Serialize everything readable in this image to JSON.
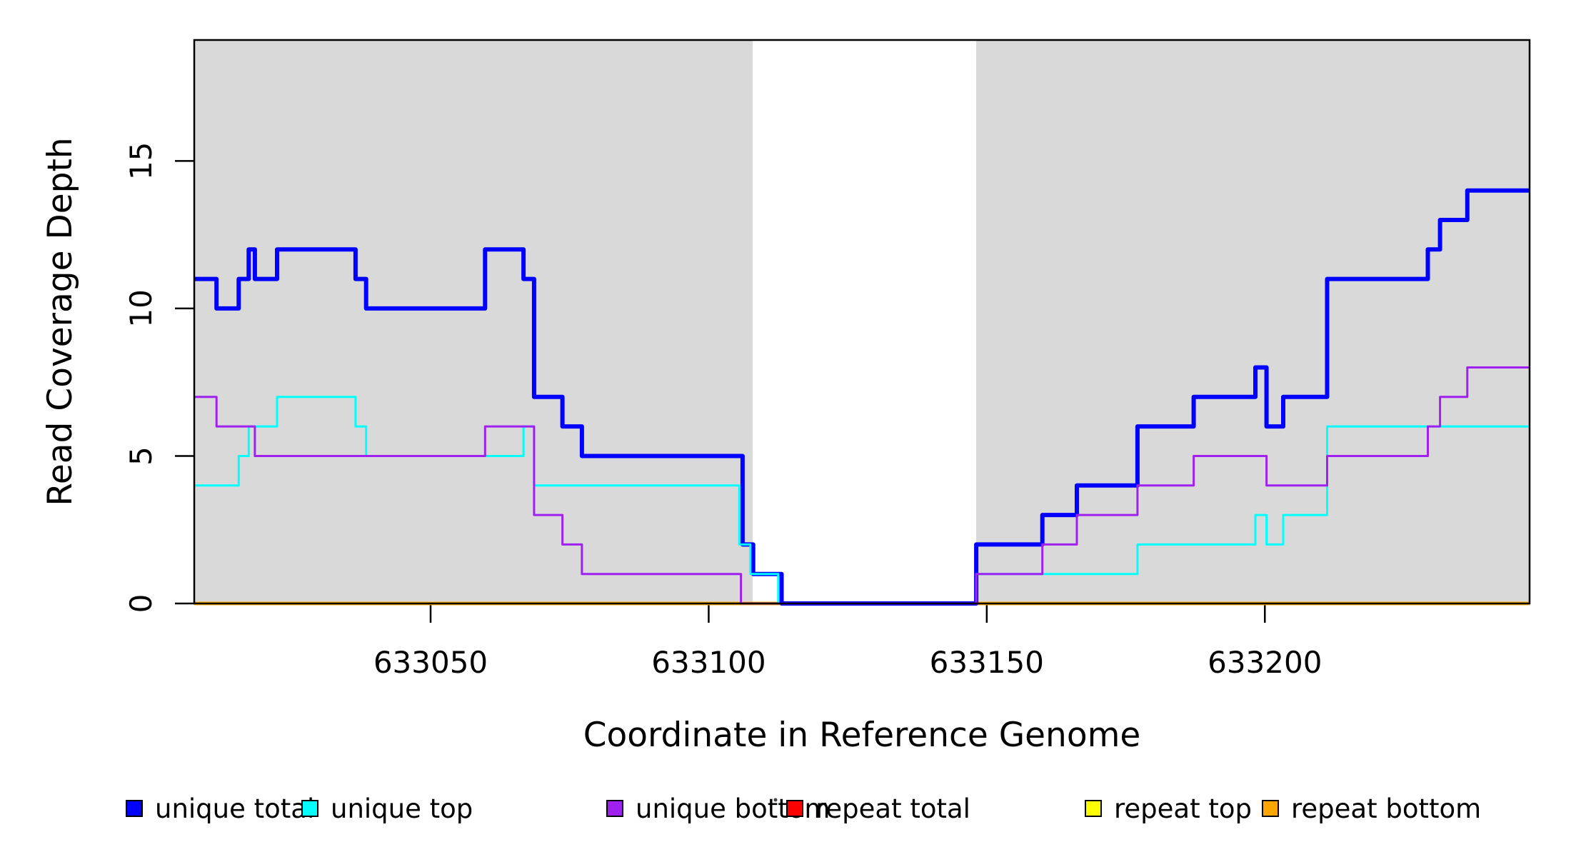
{
  "chart_data": {
    "type": "line",
    "subtype": "step-coverage-plot",
    "title": "",
    "xlabel": "Coordinate in Reference Genome",
    "ylabel": "Read Coverage Depth",
    "xlim": [
      633007.5,
      633247.6
    ],
    "ylim": [
      0,
      19.1
    ],
    "x_end": 633247.6,
    "x_ticks": [
      633050,
      633100,
      633150,
      633200
    ],
    "x_tick_labels": [
      "633050",
      "633100",
      "633150",
      "633200"
    ],
    "y_ticks": [
      0,
      5,
      10,
      15
    ],
    "y_tick_labels": [
      "0",
      "5",
      "10",
      "15"
    ],
    "grid": false,
    "legend_position": "bottom",
    "background_color": "#FFFFFF",
    "shade_color": "#D9D9D9",
    "box_color": "#000000",
    "shaded_regions": [
      {
        "name": "unique-region-left",
        "x0": 633007.5,
        "x1": 633107.9
      },
      {
        "name": "unique-region-right",
        "x0": 633148.1,
        "x1": 633247.6
      }
    ],
    "series": [
      {
        "name": "unique total",
        "color": "#0000FF",
        "width": 6,
        "steps": [
          [
            633007.5,
            11
          ],
          [
            633011.5,
            10
          ],
          [
            633015.5,
            11
          ],
          [
            633017.3,
            12
          ],
          [
            633018.4,
            11
          ],
          [
            633022.4,
            12
          ],
          [
            633036.5,
            11
          ],
          [
            633038.4,
            10
          ],
          [
            633059.8,
            12
          ],
          [
            633066.7,
            11
          ],
          [
            633068.6,
            7
          ],
          [
            633073.7,
            6
          ],
          [
            633077.2,
            5
          ],
          [
            633106.1,
            2
          ],
          [
            633108.0,
            1
          ],
          [
            633113.1,
            0
          ],
          [
            633148.1,
            2
          ],
          [
            633160.0,
            3
          ],
          [
            633166.2,
            4
          ],
          [
            633177.1,
            6
          ],
          [
            633187.2,
            7
          ],
          [
            633198.3,
            8
          ],
          [
            633200.3,
            6
          ],
          [
            633203.3,
            7
          ],
          [
            633211.2,
            11
          ],
          [
            633229.3,
            12
          ],
          [
            633231.5,
            13
          ],
          [
            633236.4,
            14
          ]
        ]
      },
      {
        "name": "unique top",
        "color": "#00FFFF",
        "width": 3,
        "steps": [
          [
            633007.5,
            4
          ],
          [
            633015.5,
            5
          ],
          [
            633017.3,
            6
          ],
          [
            633022.4,
            7
          ],
          [
            633036.5,
            6
          ],
          [
            633038.4,
            5
          ],
          [
            633066.7,
            6
          ],
          [
            633068.6,
            4
          ],
          [
            633105.5,
            2
          ],
          [
            633107.5,
            1
          ],
          [
            633112.5,
            0
          ],
          [
            633148.1,
            1
          ],
          [
            633177.1,
            2
          ],
          [
            633198.3,
            3
          ],
          [
            633200.3,
            2
          ],
          [
            633203.3,
            3
          ],
          [
            633211.2,
            6
          ]
        ]
      },
      {
        "name": "unique bottom",
        "color": "#A020F0",
        "width": 3,
        "steps": [
          [
            633007.5,
            7
          ],
          [
            633011.5,
            6
          ],
          [
            633018.4,
            5
          ],
          [
            633059.8,
            6
          ],
          [
            633068.6,
            3
          ],
          [
            633073.7,
            2
          ],
          [
            633077.2,
            1
          ],
          [
            633105.8,
            0
          ],
          [
            633148.1,
            1
          ],
          [
            633160.0,
            2
          ],
          [
            633166.2,
            3
          ],
          [
            633177.1,
            4
          ],
          [
            633187.2,
            5
          ],
          [
            633200.3,
            4
          ],
          [
            633211.2,
            5
          ],
          [
            633229.3,
            6
          ],
          [
            633231.5,
            7
          ],
          [
            633236.4,
            8
          ]
        ]
      },
      {
        "name": "repeat total",
        "color": "#FF0000",
        "width": 4.5,
        "steps": [
          [
            633007.5,
            0
          ]
        ]
      },
      {
        "name": "repeat top",
        "color": "#FFFF00",
        "width": 4.5,
        "steps": [
          [
            633007.5,
            0
          ]
        ]
      },
      {
        "name": "repeat bottom",
        "color": "#FFA500",
        "width": 4.5,
        "steps": [
          [
            633007.5,
            0
          ]
        ]
      }
    ]
  },
  "legend": {
    "items": [
      {
        "label": "unique total",
        "color": "#0000FF"
      },
      {
        "label": "unique top",
        "color": "#00FFFF"
      },
      {
        "label": "unique bottom",
        "color": "#A020F0"
      },
      {
        "label": "repeat total",
        "color": "#FF0000"
      },
      {
        "label": "repeat top",
        "color": "#FFFF00"
      },
      {
        "label": "repeat bottom",
        "color": "#FFA500"
      }
    ]
  }
}
